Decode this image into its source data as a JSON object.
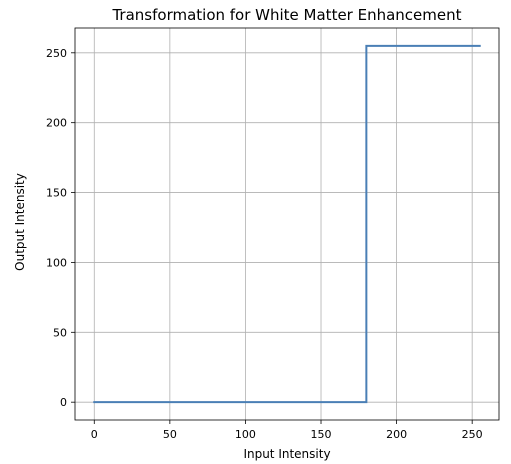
{
  "chart_data": {
    "type": "line",
    "title": "Transformation for White Matter Enhancement",
    "xlabel": "Input Intensity",
    "ylabel": "Output Intensity",
    "xlim": [
      -12.75,
      267.75
    ],
    "ylim": [
      -12.75,
      267.75
    ],
    "xticks": [
      0,
      50,
      100,
      150,
      200,
      250
    ],
    "yticks": [
      0,
      50,
      100,
      150,
      200,
      250
    ],
    "xtick_labels": [
      "0",
      "50",
      "100",
      "150",
      "200",
      "250"
    ],
    "ytick_labels": [
      "0",
      "50",
      "100",
      "150",
      "200",
      "250"
    ],
    "grid": true,
    "series": [
      {
        "color": "#4a7fb5",
        "x": [
          0,
          180,
          180,
          255
        ],
        "y": [
          0,
          0,
          255,
          255
        ]
      }
    ]
  }
}
